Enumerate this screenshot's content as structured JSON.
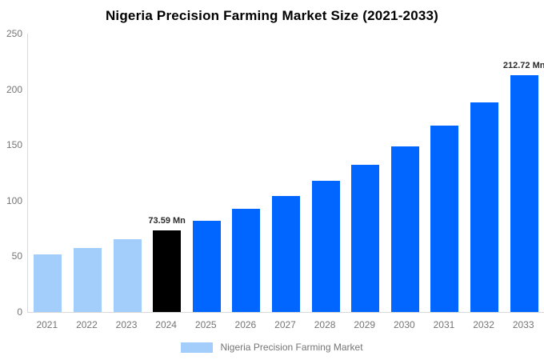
{
  "title": "Nigeria Precision Farming Market Size (2021-2033)",
  "legend": {
    "label": "Nigeria Precision Farming Market",
    "swatch_color": "#A3CDFA"
  },
  "colors": {
    "background": "#FFFFFF",
    "title_text": "#000000",
    "axis_line": "#D9D9D9",
    "axis_text": "#757575",
    "data_label_text": "#2B2B2B",
    "historical_bar": "#A3CDFA",
    "base_year_bar": "#000000",
    "forecast_bar": "#0066FF"
  },
  "chart_data": {
    "type": "bar",
    "title": "Nigeria Precision Farming Market Size (2021-2033)",
    "unit": "Mn",
    "categories": [
      "2021",
      "2022",
      "2023",
      "2024",
      "2025",
      "2026",
      "2027",
      "2028",
      "2029",
      "2030",
      "2031",
      "2032",
      "2033"
    ],
    "series": [
      {
        "name": "Nigeria Precision Farming Market",
        "values": [
          51.8,
          57.7,
          65.5,
          73.59,
          82.1,
          92.6,
          104.5,
          117.6,
          132.3,
          149.0,
          167.5,
          188.5,
          212.72
        ]
      }
    ],
    "bar_colors": [
      "#A3CDFA",
      "#A3CDFA",
      "#A3CDFA",
      "#000000",
      "#0066FF",
      "#0066FF",
      "#0066FF",
      "#0066FF",
      "#0066FF",
      "#0066FF",
      "#0066FF",
      "#0066FF",
      "#0066FF"
    ],
    "data_labels": [
      {
        "index": 3,
        "text": "73.59 Mn"
      },
      {
        "index": 12,
        "text": "212.72 Mn"
      }
    ],
    "ylim": [
      0,
      250
    ],
    "yticks": [
      0,
      50,
      100,
      150,
      200,
      250
    ],
    "grid": false,
    "legend_position": "bottom"
  }
}
